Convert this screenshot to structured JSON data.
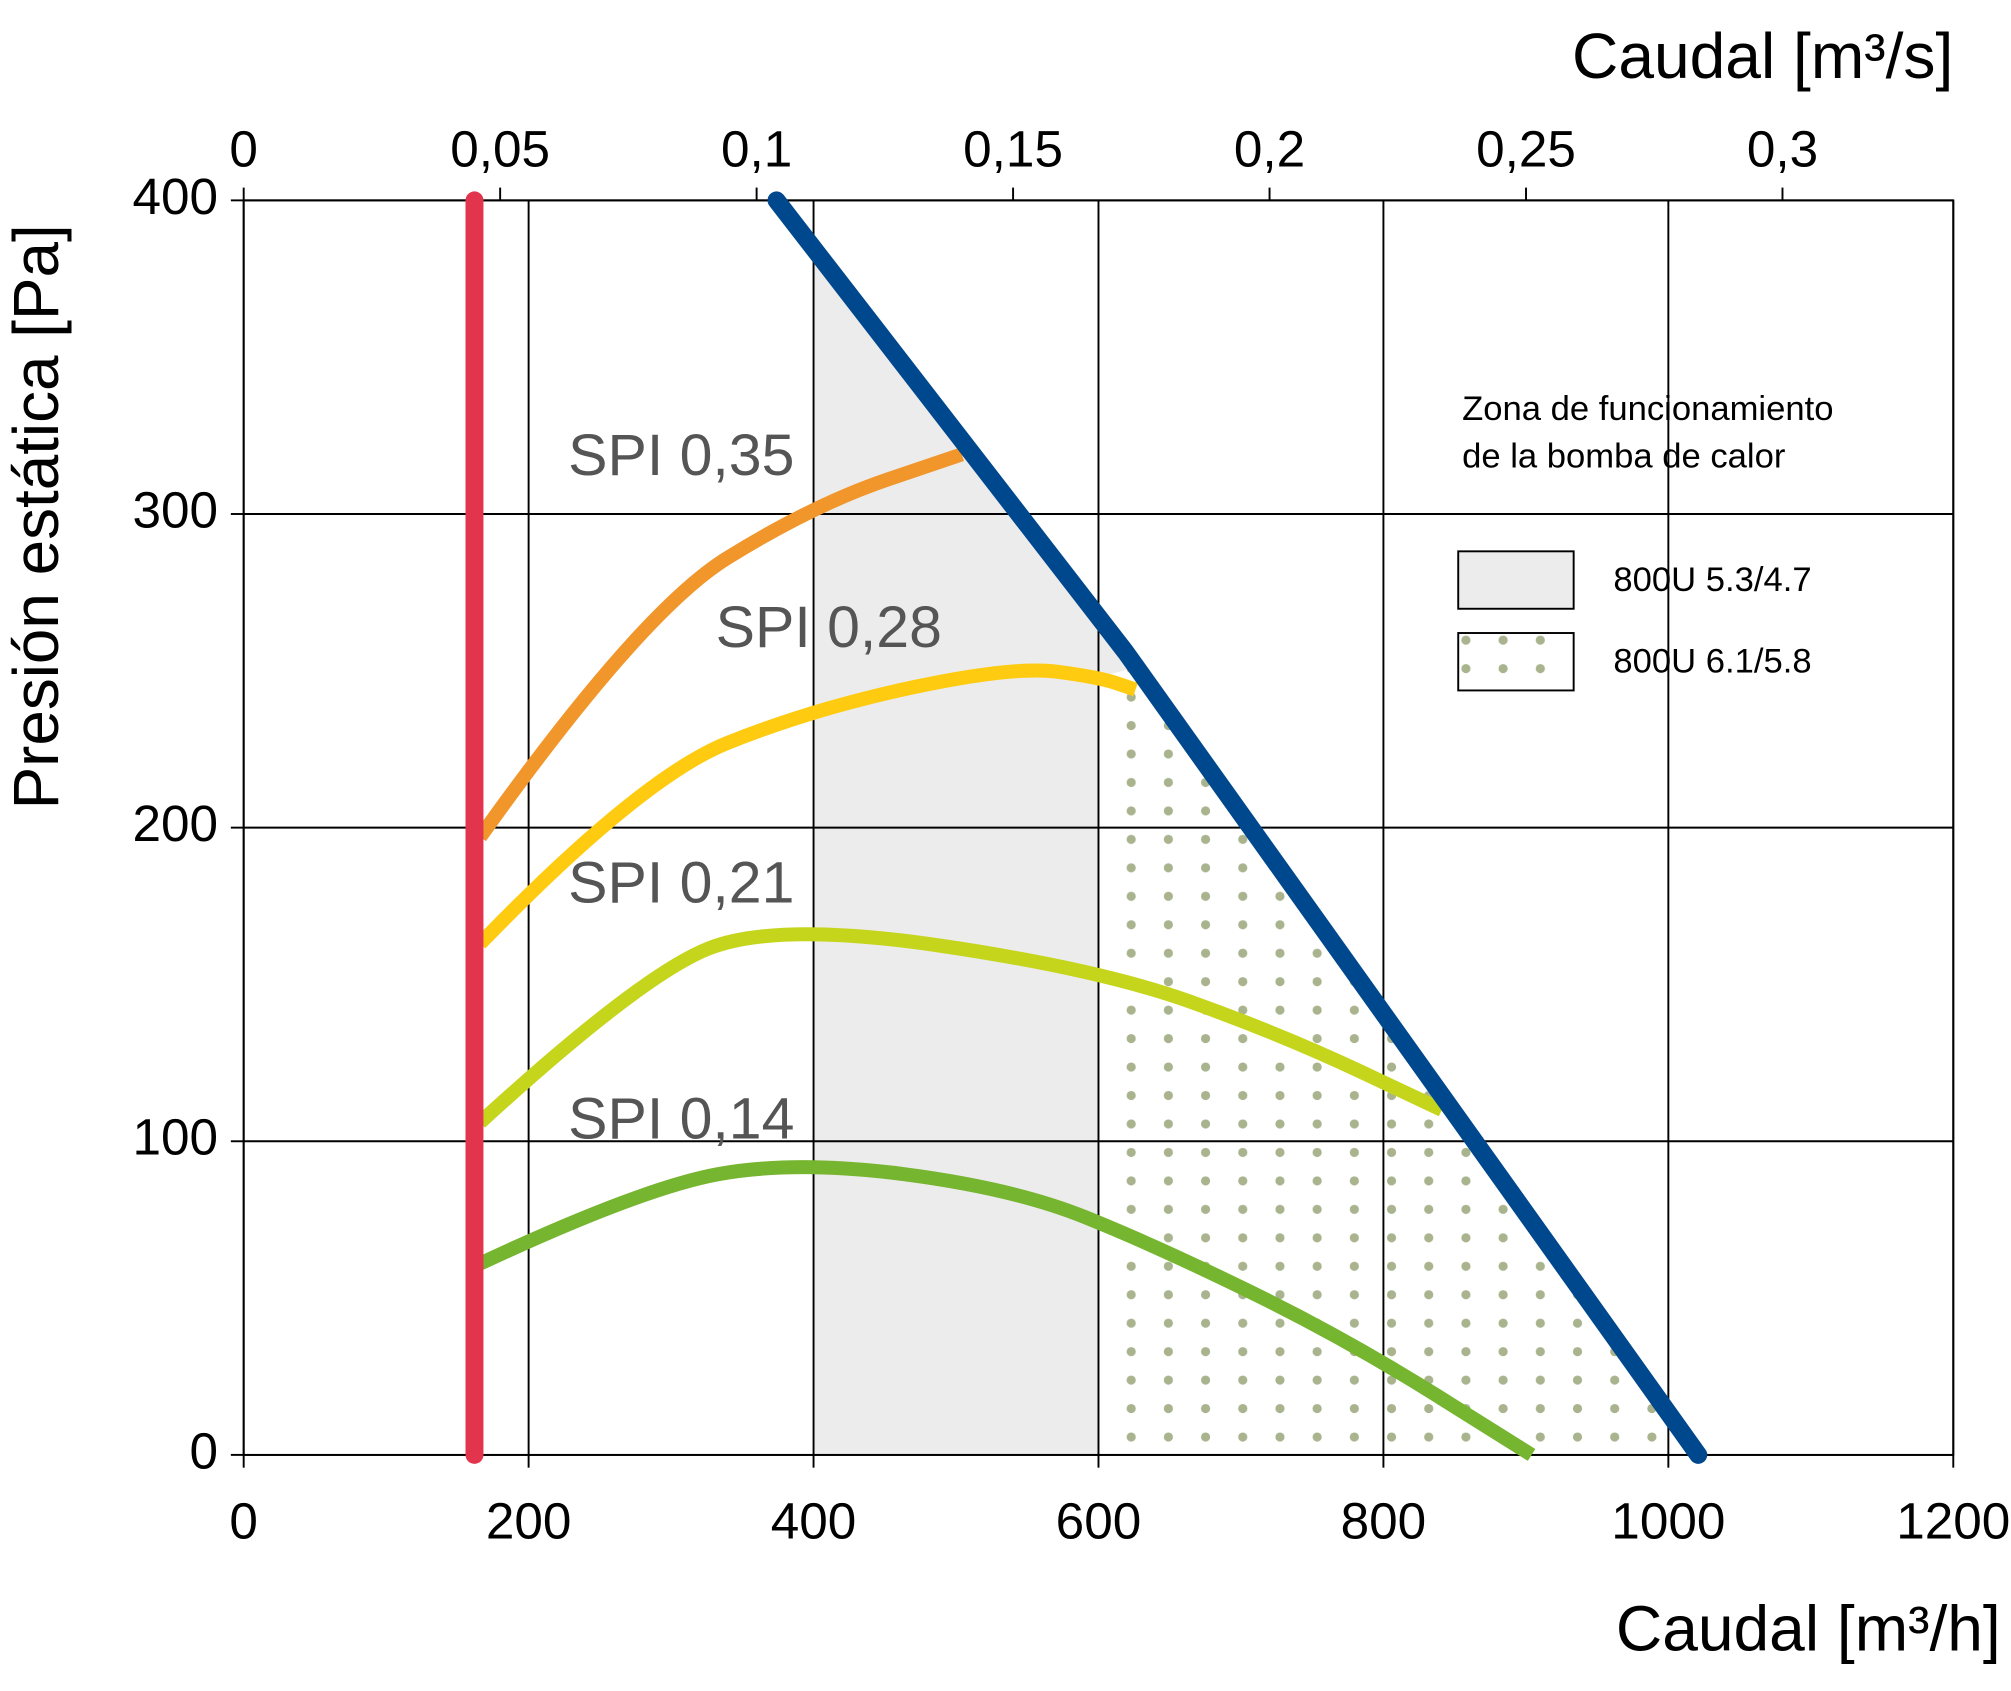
{
  "chart_data": {
    "type": "line",
    "xlabel": "Caudal [m³/h]",
    "x2label": "Caudal [m³/s]",
    "ylabel": "Presión estática [Pa]",
    "xlim": [
      0,
      1200
    ],
    "xticks": [
      0,
      200,
      400,
      600,
      800,
      1000,
      1200
    ],
    "x2lim": [
      0,
      0.3333
    ],
    "x2ticks": [
      0,
      {
        "value": 0.05,
        "label": "0,05"
      },
      {
        "value": 0.1,
        "label": "0,1"
      },
      {
        "value": 0.15,
        "label": "0,15"
      },
      {
        "value": 0.2,
        "label": "0,2"
      },
      {
        "value": 0.25,
        "label": "0,25"
      },
      {
        "value": 0.3,
        "label": "0,3"
      }
    ],
    "ylim": [
      0,
      400
    ],
    "yticks": [
      0,
      100,
      200,
      300,
      400
    ],
    "grid": true,
    "series": [
      {
        "name": "SPI 0,35",
        "color": "#f0962a",
        "x": [
          166,
          279,
          400,
          504
        ],
        "y": [
          197,
          269,
          303,
          319
        ]
      },
      {
        "name": "SPI 0,28",
        "color": "#fecb10",
        "x": [
          166,
          279,
          400,
          540,
          600,
          626
        ],
        "y": [
          163,
          216,
          238,
          251.5,
          248,
          244
        ]
      },
      {
        "name": "SPI 0,21",
        "color": "#c5d51c",
        "x": [
          166,
          279,
          374,
          600,
          729,
          841
        ],
        "y": [
          106,
          153,
          170,
          155,
          134,
          110
        ]
      },
      {
        "name": "SPI 0,14",
        "color": "#76b52f",
        "x": [
          166,
          279,
          387,
          540,
          639,
          774,
          904
        ],
        "y": [
          61,
          85,
          94,
          85,
          67,
          37,
          0
        ]
      },
      {
        "color": "#e3344d",
        "x": [
          162,
          162
        ],
        "y": [
          0,
          400
        ]
      },
      {
        "color": "#00488d",
        "x": [
          374,
          619,
          1021
        ],
        "y": [
          400,
          256,
          0
        ]
      }
    ],
    "legend_title": [
      "Zona de funcionamiento",
      "de la bomba de calor"
    ],
    "zones": [
      {
        "name": "800U 5.3/4.7",
        "color": "#ececec",
        "x": [
          400,
          400,
          619,
          1021
        ],
        "y": [
          0,
          385,
          256,
          0
        ]
      },
      {
        "name": "800U 6.1/5.8",
        "color": "#a9b48f",
        "x": [
          600,
          600,
          626,
          1021
        ],
        "y": [
          0,
          248,
          251,
          0
        ]
      }
    ]
  }
}
